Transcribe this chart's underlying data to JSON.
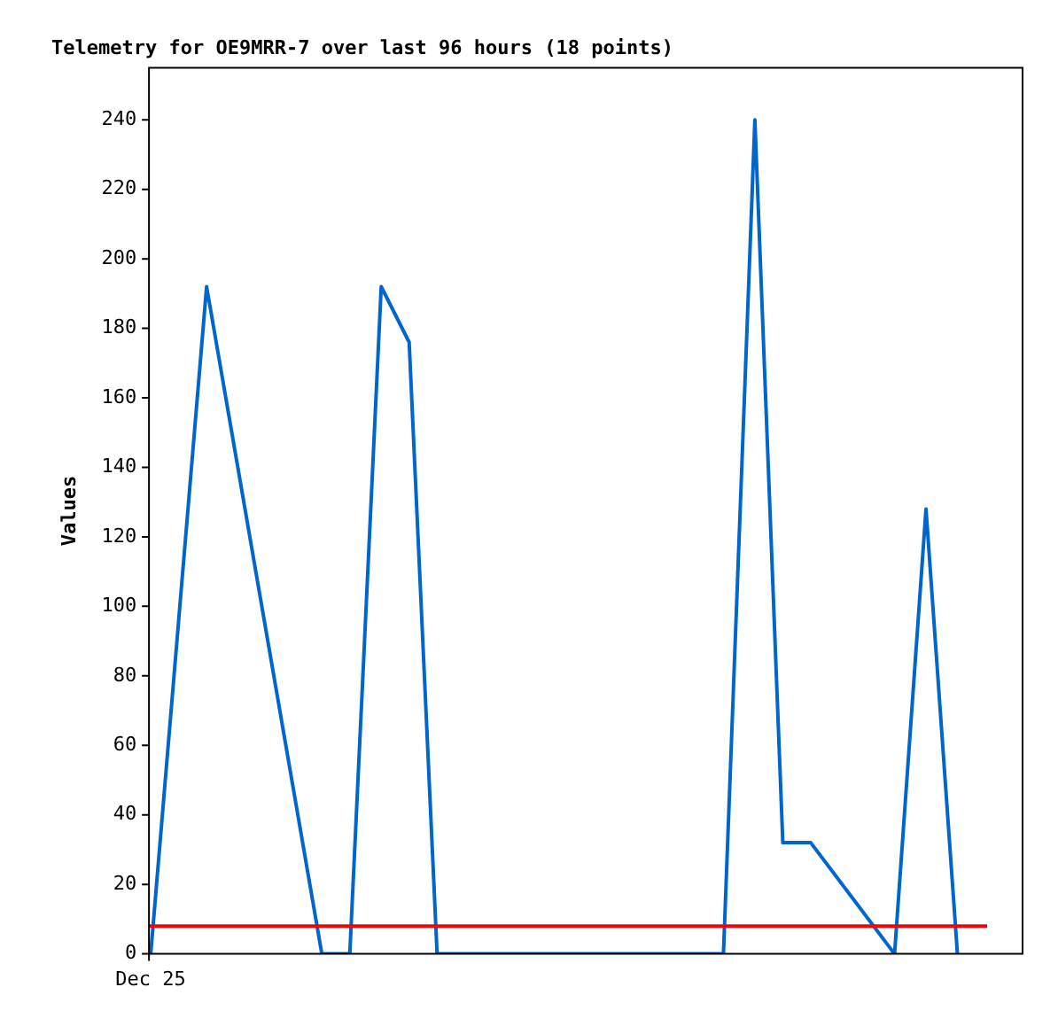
{
  "chart_data": {
    "type": "line",
    "title": "Telemetry for OE9MRR-7 over last 96 hours (18 points)",
    "ylabel": "Values",
    "categories": [
      "Dec 25",
      null,
      null,
      null,
      null,
      null,
      null,
      null,
      null,
      null,
      null,
      null,
      null,
      null,
      null,
      null,
      null,
      null,
      null,
      null,
      null,
      null,
      null,
      null,
      null,
      null,
      null,
      null,
      null,
      null,
      null,
      null,
      null,
      null,
      null,
      null,
      null,
      null,
      null,
      null,
      null,
      null,
      null,
      null,
      null,
      null,
      null,
      null,
      null,
      null,
      null,
      null,
      null,
      null,
      null,
      null,
      null,
      null,
      null,
      null,
      null,
      null,
      null,
      null,
      null,
      null,
      null,
      null,
      null,
      null,
      null,
      null,
      null,
      null,
      null,
      null,
      null,
      null,
      null,
      null,
      null,
      null,
      null,
      null,
      null,
      null,
      null,
      null,
      null,
      null,
      null,
      null,
      null,
      null,
      null,
      null,
      null,
      null,
      null,
      null,
      null,
      null,
      null,
      null,
      null,
      null,
      null,
      null,
      null,
      null,
      null,
      null,
      null,
      null,
      null,
      null,
      null,
      null,
      null,
      null,
      null,
      null,
      null,
      null,
      null,
      null,
      null,
      null,
      null,
      null,
      null,
      null,
      null,
      null,
      null,
      null,
      null,
      null,
      null,
      null,
      null,
      null,
      null,
      null,
      null,
      null,
      null,
      null,
      null,
      null,
      null,
      null,
      null,
      null,
      null,
      null,
      null,
      null,
      null,
      null,
      null,
      null,
      null,
      null,
      null,
      null,
      null,
      null,
      null,
      null,
      null,
      null,
      null,
      null,
      null,
      null,
      null,
      null,
      null,
      null,
      null,
      null,
      null,
      null,
      null,
      null,
      null,
      null,
      null,
      null,
      null,
      null,
      null,
      null,
      null,
      null,
      null,
      null,
      null,
      null,
      null,
      null,
      null,
      null,
      null,
      null,
      null,
      null,
      null,
      null,
      null,
      null,
      null,
      null,
      null,
      null,
      null,
      null,
      null,
      null,
      null,
      null,
      null,
      null,
      null,
      null,
      null,
      null,
      null,
      null,
      null,
      null,
      null,
      null,
      null,
      null,
      null,
      null,
      null,
      null
    ],
    "series": [
      {
        "color": "#0066cc",
        "values": [
          0,
          null,
          null,
          null,
          null,
          null,
          null,
          null,
          null,
          null,
          null,
          null,
          null,
          null,
          null,
          null,
          192,
          null,
          null,
          null,
          null,
          null,
          null,
          null,
          null,
          null,
          null,
          null,
          null,
          null,
          null,
          null,
          null,
          null,
          null,
          null,
          null,
          null,
          null,
          null,
          null,
          null,
          null,
          null,
          null,
          null,
          null,
          null,
          null,
          0,
          null,
          null,
          null,
          null,
          null,
          null,
          null,
          0,
          null,
          null,
          null,
          null,
          null,
          null,
          null,
          null,
          192,
          null,
          null,
          null,
          null,
          null,
          null,
          null,
          176,
          null,
          null,
          null,
          null,
          null,
          null,
          null,
          0,
          null,
          null,
          null,
          null,
          null,
          null,
          null,
          null,
          null,
          null,
          null,
          null,
          null,
          null,
          null,
          null,
          null,
          null,
          null,
          null,
          null,
          null,
          null,
          null,
          null,
          null,
          null,
          null,
          null,
          null,
          null,
          null,
          null,
          null,
          null,
          null,
          null,
          null,
          null,
          null,
          null,
          null,
          null,
          null,
          null,
          null,
          null,
          null,
          null,
          null,
          null,
          null,
          null,
          null,
          null,
          null,
          null,
          null,
          null,
          null,
          null,
          null,
          null,
          null,
          null,
          null,
          null,
          null,
          null,
          null,
          null,
          null,
          null,
          null,
          null,
          null,
          null,
          null,
          null,
          null,
          null,
          0,
          null,
          null,
          null,
          null,
          null,
          null,
          null,
          null,
          240,
          null,
          null,
          null,
          null,
          null,
          null,
          null,
          32,
          null,
          null,
          null,
          null,
          null,
          null,
          null,
          32,
          null,
          null,
          null,
          null,
          null,
          null,
          null,
          null,
          null,
          null,
          null,
          null,
          null,
          null,
          null,
          null,
          null,
          null,
          null,
          null,
          null,
          null,
          null,
          0,
          null,
          null,
          null,
          null,
          null,
          null,
          null,
          null,
          128,
          null,
          null,
          null,
          null,
          null,
          null,
          null,
          null,
          0,
          null,
          null,
          null,
          null,
          null,
          null,
          null,
          null
        ]
      }
    ],
    "ylim": [
      0,
      255
    ],
    "yticks": [
      0,
      20,
      40,
      60,
      80,
      100,
      120,
      140,
      160,
      180,
      200,
      220,
      240
    ],
    "ref_lines": [
      {
        "axis": "y",
        "value": 8,
        "color": "#ff0000"
      }
    ],
    "grid": false,
    "legend": false,
    "marker": "none",
    "line_style": "solid"
  }
}
